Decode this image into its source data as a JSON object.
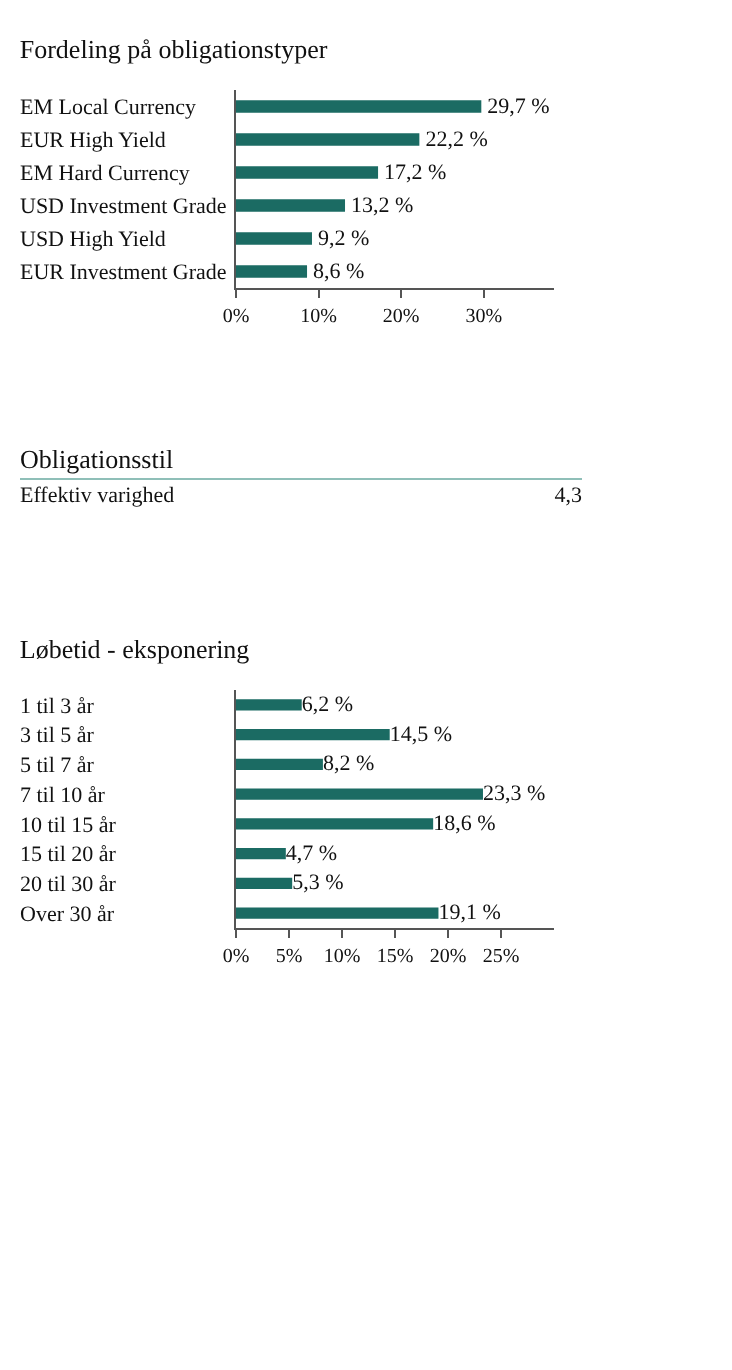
{
  "chart_data": [
    {
      "type": "bar",
      "orientation": "horizontal",
      "title": "Fordeling på obligationstyper",
      "categories": [
        "EM Local Currency",
        "EUR High Yield",
        "EM Hard Currency",
        "USD Investment Grade",
        "USD High Yield",
        "EUR Investment Grade"
      ],
      "values": [
        29.7,
        22.2,
        17.2,
        13.2,
        9.2,
        8.6
      ],
      "value_labels": [
        "29,7 %",
        "22,2 %",
        "17,2 %",
        "13,2 %",
        "9,2 %",
        "8,6 %"
      ],
      "color": "#1b6b63",
      "xlim": [
        0,
        38.5
      ],
      "xticks": [
        {
          "value": 0,
          "label": "0%"
        },
        {
          "value": 10,
          "label": "10%"
        },
        {
          "value": 20,
          "label": "20%"
        },
        {
          "value": 30,
          "label": "30%"
        }
      ]
    },
    {
      "type": "other",
      "title": "Obligationsstil",
      "annotations": [
        "Effektiv varighed",
        "4,3"
      ]
    },
    {
      "type": "bar",
      "orientation": "horizontal",
      "title": "Løbetid - eksponering",
      "categories": [
        "1 til 3 år",
        "3 til 5 år",
        "5 til 7 år",
        "7 til 10 år",
        "10 til 15 år",
        "15 til 20 år",
        "20 til 30 år",
        "Over 30 år"
      ],
      "values": [
        6.2,
        14.5,
        8.2,
        23.3,
        18.6,
        4.7,
        5.3,
        19.1
      ],
      "value_labels": [
        "6,2 %",
        "14,5 %",
        "8,2 %",
        "23,3 %",
        "18,6 %",
        "4,7 %",
        "5,3 %",
        "19,1 %"
      ],
      "color": "#1b6b63",
      "xlim": [
        0,
        30
      ],
      "xticks": [
        {
          "value": 0,
          "label": "0%"
        },
        {
          "value": 5,
          "label": "5%"
        },
        {
          "value": 10,
          "label": "10%"
        },
        {
          "value": 15,
          "label": "15%"
        },
        {
          "value": 20,
          "label": "20%"
        },
        {
          "value": 25,
          "label": "25%"
        }
      ]
    }
  ]
}
